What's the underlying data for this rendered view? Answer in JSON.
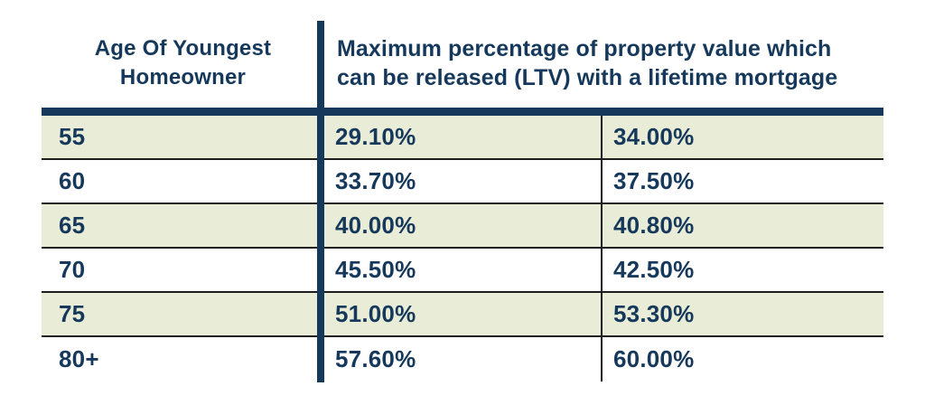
{
  "table": {
    "header": {
      "age_lines": [
        "Age Of Youngest",
        "Homeowner"
      ],
      "ltv_lines": [
        "Maximum percentage of property value which",
        "can be released (LTV) with a lifetime mortgage"
      ]
    },
    "rows": [
      {
        "age": "55",
        "ltv1": "29.10%",
        "ltv2": "34.00%"
      },
      {
        "age": "60",
        "ltv1": "33.70%",
        "ltv2": "37.50%"
      },
      {
        "age": "65",
        "ltv1": "40.00%",
        "ltv2": "40.80%"
      },
      {
        "age": "70",
        "ltv1": "45.50%",
        "ltv2": "42.50%"
      },
      {
        "age": "75",
        "ltv1": "51.00%",
        "ltv2": "53.30%"
      },
      {
        "age": "80+",
        "ltv1": "57.60%",
        "ltv2": "60.00%"
      }
    ],
    "colors": {
      "text_navy": "#16395B",
      "divider_navy": "#16395B",
      "row_alt_green": "#E9EDD8",
      "row_border_dark": "#1D1D1D",
      "background": "#FFFFFF"
    }
  },
  "chart_data": {
    "type": "table",
    "title": "",
    "header": {
      "col1": "Age Of Youngest Homeowner",
      "col2_3_spanned": "Maximum percentage of property value which can be released (LTV) with a lifetime mortgage"
    },
    "rows": [
      [
        "55",
        "29.10%",
        "34.00%"
      ],
      [
        "60",
        "33.70%",
        "37.50%"
      ],
      [
        "65",
        "40.00%",
        "40.80%"
      ],
      [
        "70",
        "45.50%",
        "42.50%"
      ],
      [
        "75",
        "51.00%",
        "53.30%"
      ],
      [
        "80+",
        "57.60%",
        "60.00%"
      ]
    ],
    "layout_hints": {
      "alternating_row_shading": [
        "green",
        "white",
        "green",
        "white",
        "green",
        "white"
      ],
      "thick_vertical_divider_after_col1": true,
      "thin_vertical_divider_between_value_columns": true,
      "thick_horizontal_bar_below_header": true
    }
  }
}
